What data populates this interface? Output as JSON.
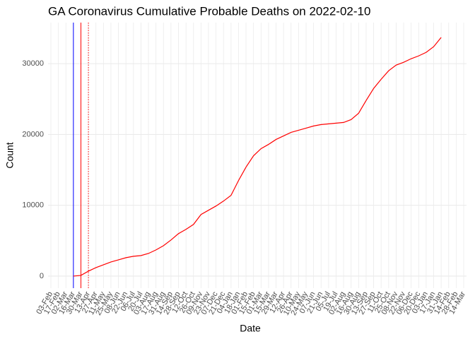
{
  "chart_data": {
    "type": "line",
    "title": "GA Coronavirus Cumulative Probable Deaths on 2022-02-10",
    "x_label": "Date",
    "y_label": "Count",
    "categories": [
      "03-Feb",
      "17-Feb",
      "02-Mar",
      "16-Mar",
      "30-Mar",
      "13-Apr",
      "27-Apr",
      "11-May",
      "25-May",
      "08-Jun",
      "22-Jun",
      "06-Jul",
      "20-Jul",
      "03-Aug",
      "17-Aug",
      "31-Aug",
      "14-Sep",
      "28-Sep",
      "12-Oct",
      "26-Oct",
      "09-Nov",
      "23-Nov",
      "07-Dec",
      "21-Dec",
      "04-Jan",
      "18-Jan",
      "01-Feb",
      "15-Feb",
      "01-Mar",
      "15-Mar",
      "29-Mar",
      "12-Apr",
      "26-Apr",
      "10-May",
      "24-May",
      "07-Jun",
      "21-Jun",
      "05-Jul",
      "19-Jul",
      "02-Aug",
      "16-Aug",
      "30-Aug",
      "13-Sep",
      "27-Sep",
      "11-Oct",
      "25-Oct",
      "08-Nov",
      "22-Nov",
      "06-Dec",
      "20-Dec",
      "03-Jan",
      "17-Jan",
      "31-Jan",
      "14-Feb",
      "28-Feb",
      "14-Mar"
    ],
    "series": [
      {
        "name": "Probable Deaths",
        "color": "#ff0000",
        "values": [
          null,
          null,
          null,
          0,
          100,
          700,
          1200,
          1600,
          2000,
          2300,
          2600,
          2800,
          2900,
          3200,
          3700,
          4300,
          5100,
          6000,
          6600,
          7300,
          8700,
          9300,
          9900,
          10600,
          11400,
          13500,
          15400,
          17000,
          18000,
          18600,
          19300,
          19800,
          20300,
          20600,
          20900,
          21200,
          21400,
          21500,
          21600,
          21700,
          22100,
          23000,
          24800,
          26500,
          27800,
          29000,
          29800,
          30200,
          30700,
          31100,
          31600,
          32400,
          33700,
          null,
          null,
          null
        ]
      }
    ],
    "ylim": [
      -1700,
      35800
    ],
    "yticks": [
      0,
      10000,
      20000,
      30000
    ],
    "grid": true,
    "vlines": [
      {
        "at": "16-Mar",
        "color": "#0000ff",
        "dashed": false
      },
      {
        "at": "30-Mar",
        "color": "#ff0000",
        "dashed": false
      },
      {
        "at": "13-Apr",
        "color": "#ff0000",
        "dashed": true
      }
    ]
  }
}
